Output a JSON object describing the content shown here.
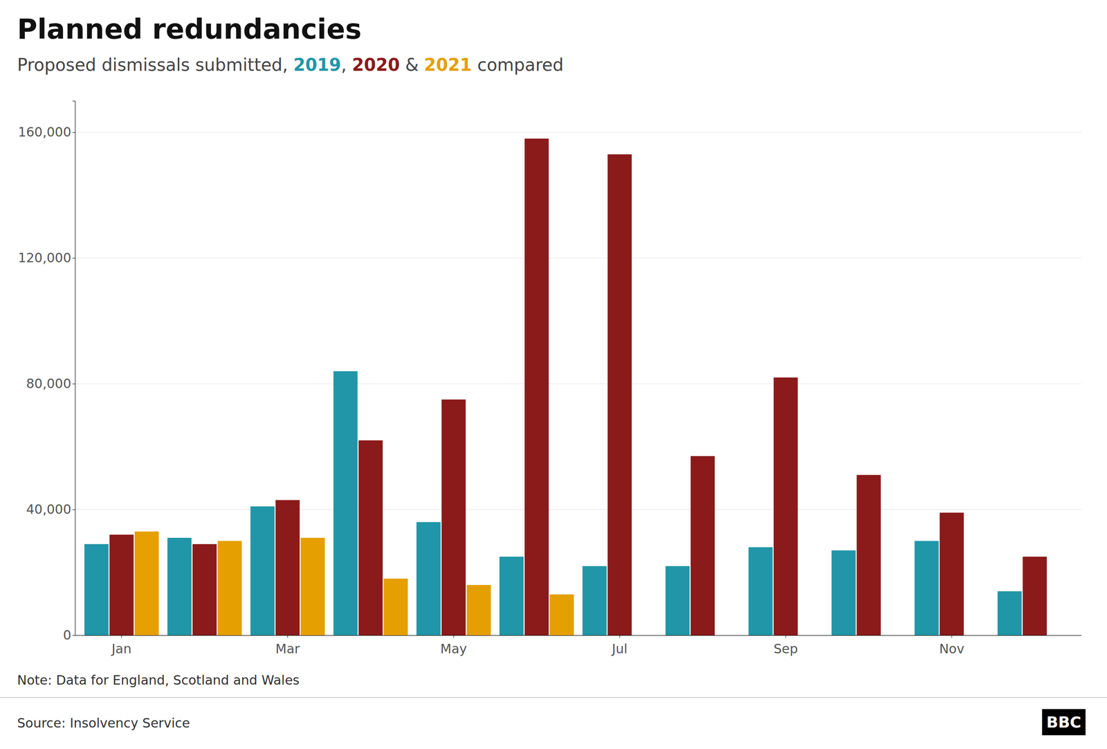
{
  "chart_data": {
    "type": "bar",
    "title": "Planned redundancies",
    "subtitle": "Proposed dismissals submitted, 2019, 2020 & 2021 compared",
    "categories": [
      "Jan",
      null,
      "Mar",
      null,
      "May",
      null,
      "Jul",
      null,
      "Sep",
      null,
      "Nov",
      null
    ],
    "series": [
      {
        "name": "2019",
        "color": "#2196a8",
        "values": [
          29000,
          31000,
          41000,
          84000,
          36000,
          25000,
          22000,
          22000,
          28000,
          27000,
          30000,
          14000
        ]
      },
      {
        "name": "2020",
        "color": "#8b1a1a",
        "values": [
          32000,
          29000,
          43000,
          62000,
          75000,
          158000,
          153000,
          57000,
          82000,
          51000,
          39000,
          25000
        ]
      },
      {
        "name": "2021",
        "color": "#e5a000",
        "values": [
          33000,
          30000,
          31000,
          18000,
          16000,
          13000,
          null,
          null,
          null,
          null,
          null,
          null
        ]
      }
    ],
    "ylim": [
      0,
      170000
    ],
    "yticks": [
      0,
      {
        "value": 40000,
        "label": "40,000"
      },
      {
        "value": 80000,
        "label": "80,000"
      },
      {
        "value": 120000,
        "label": "120,000"
      },
      {
        "value": 160000,
        "label": "160,000"
      }
    ],
    "grid": true,
    "annotations": [
      "Note: Data for England, Scotland and Wales",
      "Source: Insolvency Service",
      "BBC"
    ]
  }
}
